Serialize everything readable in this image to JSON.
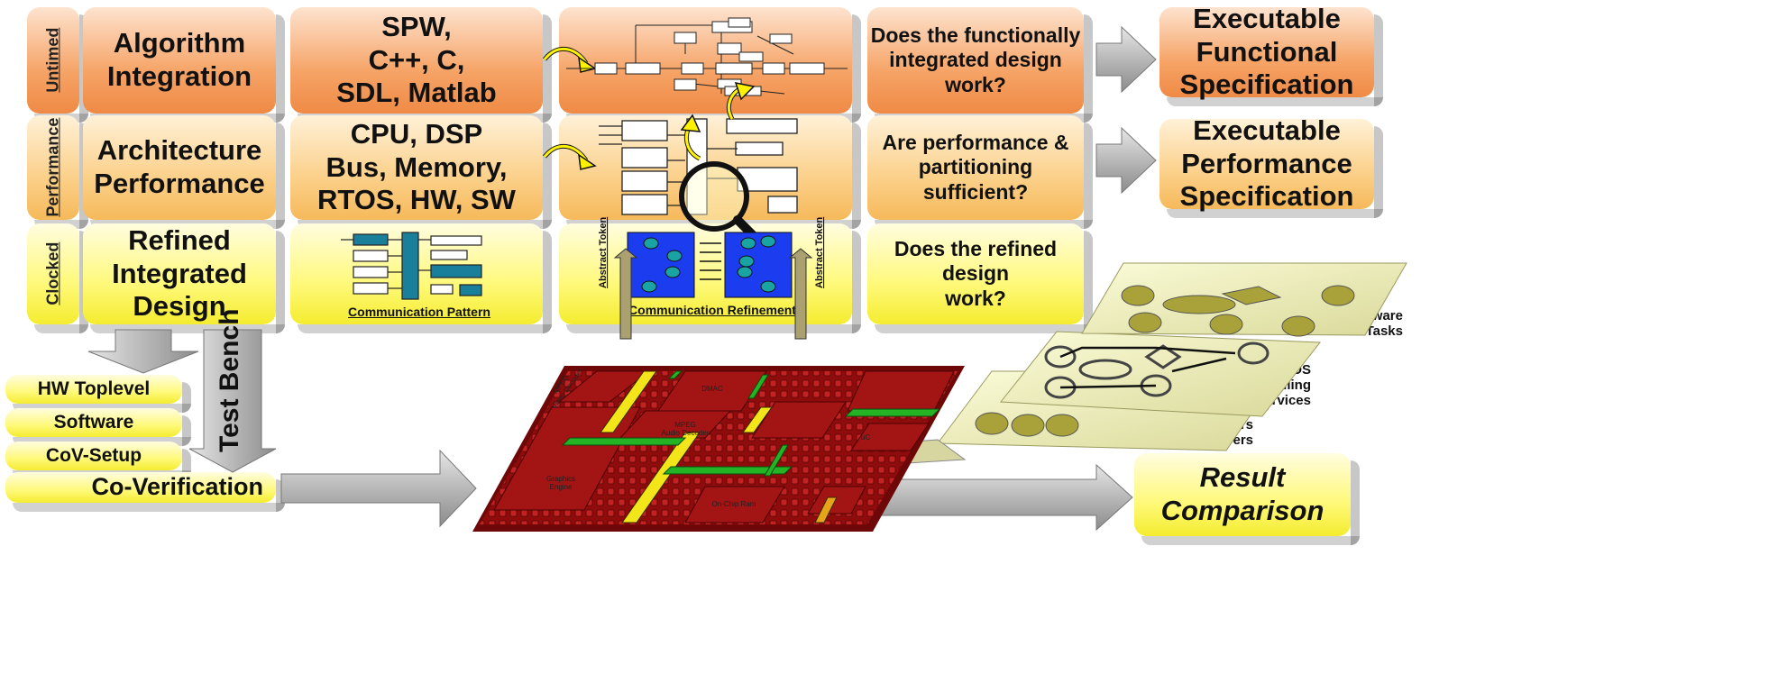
{
  "rows": {
    "untimed": "Untimed",
    "performance": "Performance",
    "clocked": "Clocked"
  },
  "levels": {
    "algorithm": "Algorithm\nIntegration",
    "architecture": "Architecture\nPerformance",
    "refined": "Refined\nIntegrated\nDesign"
  },
  "tools": {
    "spw": "SPW,\nC++, C,\nSDL, Matlab",
    "cpu": "CPU, DSP\nBus, Memory,\nRTOS, HW, SW",
    "communication_pattern": "Communication Pattern"
  },
  "models": {
    "communication_refinement": "Communication Refinement",
    "abstract_token_left": "Abstract Token",
    "abstract_token_right": "Abstract Token"
  },
  "questions": {
    "q1": "Does the functionally\nintegrated design\nwork?",
    "q2": "Are performance &\npartitioning sufficient?",
    "q3": "Does the refined design\nwork?"
  },
  "outputs": {
    "functional": "Executable\nFunctional\nSpecification",
    "performance": "Executable\nPerformance\nSpecification",
    "result": "Result\nComparison"
  },
  "stack": {
    "hw_toplevel": "HW Toplevel",
    "software": "Software",
    "cov_setup": "CoV-Setup",
    "co_verification": "Co-Verification",
    "test_bench": "Test Bench"
  },
  "layers": {
    "software_tasks": "Software\nTasks",
    "rtos": "RTOS\nScheduling\nand Services",
    "drivers": "CPU I/Os Drivers\nBus I/F Drivers"
  },
  "chip_blocks": {
    "dmac": "DMAC",
    "mpeg_video": "MPEG\nVideo Decoder",
    "mpeg_audio": "MPEG\nAudio Decoder",
    "graphics": "Graphics\nEngine",
    "onchip_ram": "On-Chip Ram",
    "uc": "uC"
  },
  "colors": {
    "orange": "#f29a5a",
    "light_orange": "#f9c678",
    "yellow": "#f7f04a",
    "chip_red": "#8e0c0c",
    "arrow_gray": "#a9a9a9"
  }
}
